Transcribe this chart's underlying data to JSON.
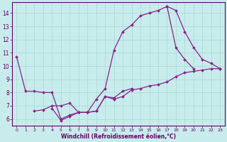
{
  "xlabel": "Windchill (Refroidissement éolien,°C)",
  "bg_color": "#c8ecec",
  "line_color": "#882288",
  "grid_color": "#a8d8d8",
  "axis_color": "#660066",
  "xlim": [
    -0.5,
    23.5
  ],
  "ylim": [
    5.5,
    14.8
  ],
  "xticks": [
    0,
    1,
    2,
    3,
    4,
    5,
    6,
    7,
    8,
    9,
    10,
    11,
    12,
    13,
    14,
    15,
    16,
    17,
    18,
    19,
    20,
    21,
    22,
    23
  ],
  "yticks": [
    6,
    7,
    8,
    9,
    10,
    11,
    12,
    13,
    14
  ],
  "series": [
    {
      "x": [
        0,
        1,
        2,
        3,
        4,
        5,
        6,
        7,
        8,
        9,
        10,
        11,
        12,
        13,
        14,
        15,
        16,
        17,
        18,
        19,
        20
      ],
      "y": [
        10.7,
        8.1,
        8.1,
        8.0,
        8.0,
        6.0,
        6.3,
        6.5,
        6.5,
        7.5,
        8.3,
        11.2,
        12.6,
        13.1,
        13.8,
        14.0,
        14.2,
        14.5,
        11.4,
        10.5,
        9.8
      ]
    },
    {
      "x": [
        2,
        3,
        4,
        5,
        6,
        7,
        8,
        9,
        10,
        11,
        12,
        13,
        14,
        15,
        16,
        17,
        18,
        19,
        20,
        21,
        22,
        23
      ],
      "y": [
        6.6,
        6.7,
        7.0,
        7.0,
        7.2,
        6.5,
        6.5,
        6.6,
        7.7,
        7.5,
        7.7,
        8.2,
        8.3,
        8.5,
        8.6,
        8.8,
        9.2,
        9.5,
        9.6,
        9.7,
        9.8,
        9.8
      ]
    },
    {
      "x": [
        4,
        5,
        6,
        7,
        8,
        9,
        10,
        11,
        12,
        13
      ],
      "y": [
        6.8,
        5.9,
        6.2,
        6.5,
        6.5,
        6.6,
        7.7,
        7.6,
        8.1,
        8.3
      ]
    },
    {
      "x": [
        17,
        18,
        19,
        20,
        21,
        22,
        23
      ],
      "y": [
        14.5,
        14.2,
        12.6,
        11.4,
        10.5,
        10.2,
        9.8
      ]
    }
  ]
}
